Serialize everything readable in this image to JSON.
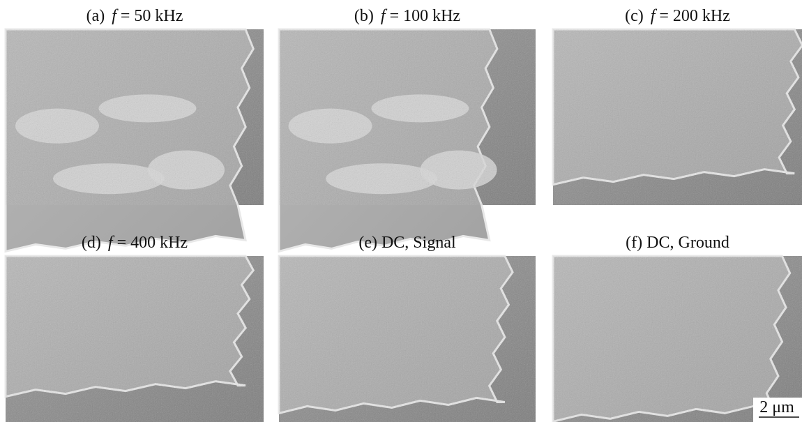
{
  "panels": [
    {
      "label": "(a)",
      "variable": "f",
      "text": "= 50 kHz"
    },
    {
      "label": "(b)",
      "variable": "f",
      "text": "= 100 kHz"
    },
    {
      "label": "(c)",
      "variable": "f",
      "text": "= 200 kHz"
    },
    {
      "label": "(d)",
      "variable": "f",
      "text": "= 400 kHz"
    },
    {
      "label": "(e)",
      "text": "DC, Signal"
    },
    {
      "label": "(f)",
      "text": "DC, Ground"
    }
  ],
  "scale_bar": "2 μm"
}
